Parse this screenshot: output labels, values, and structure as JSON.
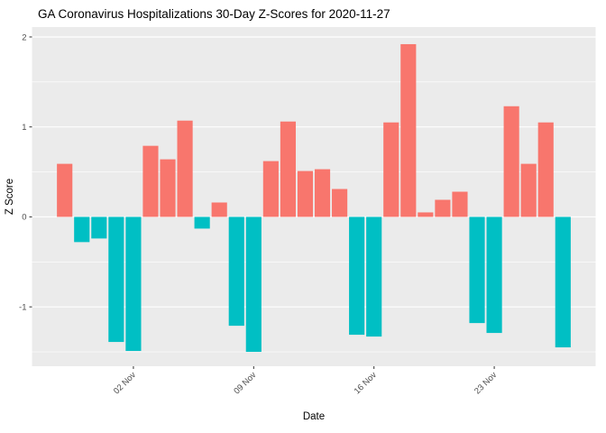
{
  "chart_data": {
    "type": "bar",
    "title": "GA Coronavirus Hospitalizations 30-Day Z-Scores for 2020-11-27",
    "xlabel": "Date",
    "ylabel": "Z Score",
    "x": [
      "2020-10-29",
      "2020-10-30",
      "2020-10-31",
      "2020-11-01",
      "2020-11-02",
      "2020-11-03",
      "2020-11-04",
      "2020-11-05",
      "2020-11-06",
      "2020-11-07",
      "2020-11-08",
      "2020-11-09",
      "2020-11-10",
      "2020-11-11",
      "2020-11-12",
      "2020-11-13",
      "2020-11-14",
      "2020-11-15",
      "2020-11-16",
      "2020-11-17",
      "2020-11-18",
      "2020-11-19",
      "2020-11-20",
      "2020-11-21",
      "2020-11-22",
      "2020-11-23",
      "2020-11-24",
      "2020-11-25",
      "2020-11-26",
      "2020-11-27"
    ],
    "values": [
      0.59,
      -0.28,
      -0.24,
      -1.39,
      -1.49,
      0.79,
      0.64,
      1.07,
      -0.13,
      0.16,
      -1.21,
      -1.5,
      0.62,
      1.06,
      0.51,
      0.53,
      0.31,
      -1.31,
      -1.33,
      1.05,
      1.92,
      0.05,
      0.19,
      0.28,
      -1.18,
      -1.29,
      1.23,
      0.59,
      1.05,
      -1.45
    ],
    "x_tick_labels": [
      "02 Nov",
      "09 Nov",
      "16 Nov",
      "23 Nov"
    ],
    "x_tick_indices": [
      4,
      11,
      18,
      25
    ],
    "y_ticks": [
      -1,
      0,
      1,
      2
    ],
    "y_minor_ticks": [
      -1.5,
      -0.5,
      0.5,
      1.5
    ],
    "ylim": [
      -1.66,
      2.11
    ],
    "colors": {
      "positive": "#F8766D",
      "negative": "#00BFC4",
      "panel_bg": "#EBEBEB",
      "grid": "#FFFFFF",
      "tick_mark": "#333333",
      "tick_label": "#4D4D4D"
    },
    "legend": "none",
    "grid": "on"
  }
}
